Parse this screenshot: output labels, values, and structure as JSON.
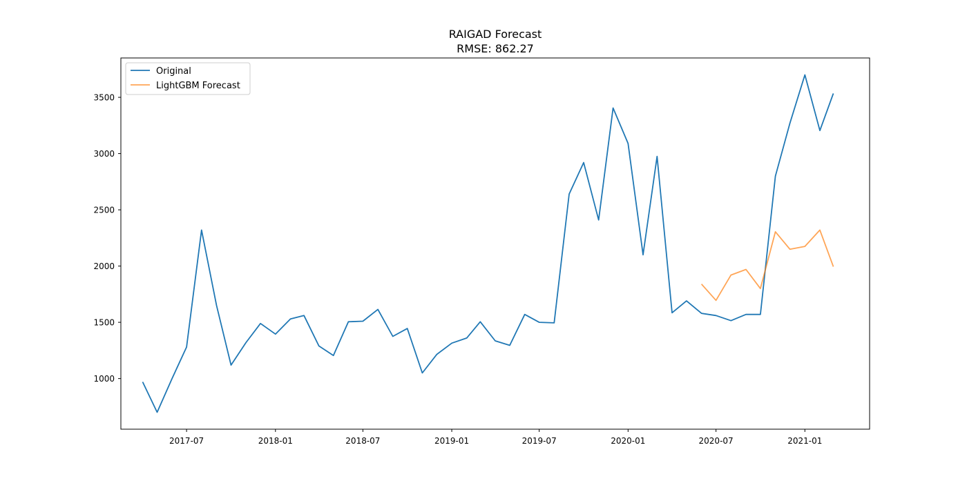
{
  "chart_data": {
    "type": "line",
    "title": "RAIGAD Forecast",
    "subtitle": "RMSE: 862.27",
    "xlabel": "",
    "ylabel": "",
    "xlim": [
      "2017-02-15",
      "2021-05-15"
    ],
    "ylim": [
      550,
      3850
    ],
    "x_ticks": [
      "2017-07",
      "2018-01",
      "2018-07",
      "2019-01",
      "2019-07",
      "2020-01",
      "2020-07",
      "2021-01"
    ],
    "y_ticks": [
      1000,
      1500,
      2000,
      2500,
      3000,
      3500
    ],
    "grid": false,
    "legend_position": "top-left",
    "series": [
      {
        "name": "Original",
        "color": "#1f77b4",
        "x": [
          "2017-04",
          "2017-05",
          "2017-06",
          "2017-07",
          "2017-08",
          "2017-09",
          "2017-10",
          "2017-11",
          "2017-12",
          "2018-01",
          "2018-02",
          "2018-03",
          "2018-04",
          "2018-05",
          "2018-06",
          "2018-07",
          "2018-08",
          "2018-09",
          "2018-10",
          "2018-11",
          "2018-12",
          "2019-01",
          "2019-02",
          "2019-03",
          "2019-04",
          "2019-05",
          "2019-06",
          "2019-07",
          "2019-08",
          "2019-09",
          "2019-10",
          "2019-11",
          "2019-12",
          "2020-01",
          "2020-02",
          "2020-03",
          "2020-04",
          "2020-05",
          "2020-06",
          "2020-07",
          "2020-08",
          "2020-09",
          "2020-10",
          "2020-11",
          "2020-12",
          "2021-01",
          "2021-02",
          "2021-03"
        ],
        "values": [
          970,
          700,
          1000,
          1280,
          2320,
          1650,
          1120,
          1320,
          1490,
          1395,
          1530,
          1560,
          1290,
          1205,
          1505,
          1510,
          1615,
          1375,
          1445,
          1050,
          1215,
          1315,
          1360,
          1505,
          1335,
          1295,
          1570,
          1500,
          1495,
          2640,
          2920,
          2410,
          3405,
          3090,
          2100,
          2975,
          1585,
          1690,
          1580,
          1560,
          1515,
          1570,
          1570,
          2800,
          3270,
          3700,
          3205,
          3535
        ]
      },
      {
        "name": "LightGBM Forecast",
        "color": "#ff7f0e",
        "x": [
          "2020-06",
          "2020-07",
          "2020-08",
          "2020-09",
          "2020-10",
          "2020-11",
          "2020-12",
          "2021-01",
          "2021-02",
          "2021-03"
        ],
        "values": [
          1840,
          1695,
          1920,
          1970,
          1800,
          2305,
          2150,
          2175,
          2320,
          1995
        ]
      }
    ]
  }
}
